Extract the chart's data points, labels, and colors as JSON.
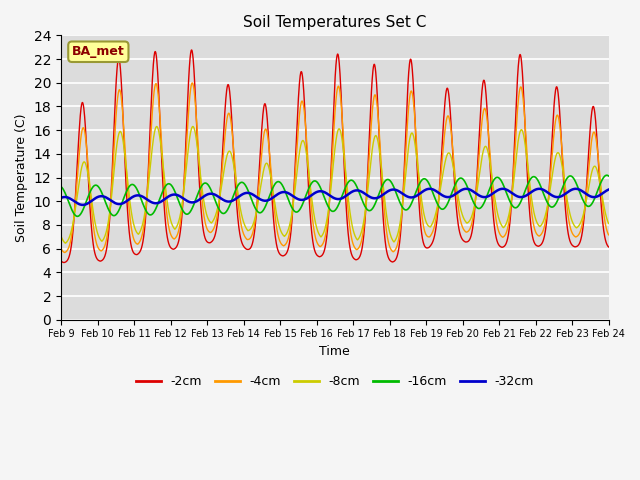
{
  "title": "Soil Temperatures Set C",
  "xlabel": "Time",
  "ylabel": "Soil Temperature (C)",
  "ylim": [
    0,
    24
  ],
  "yticks": [
    0,
    2,
    4,
    6,
    8,
    10,
    12,
    14,
    16,
    18,
    20,
    22,
    24
  ],
  "xtick_labels": [
    "Feb 9",
    "Feb 10",
    "Feb 11",
    "Feb 12",
    "Feb 13",
    "Feb 14",
    "Feb 15",
    "Feb 16",
    "Feb 17",
    "Feb 18",
    "Feb 19",
    "Feb 20",
    "Feb 21",
    "Feb 22",
    "Feb 23",
    "Feb 24"
  ],
  "legend_labels": [
    "-2cm",
    "-4cm",
    "-8cm",
    "-16cm",
    "-32cm"
  ],
  "line_colors": [
    "#dd0000",
    "#ff9900",
    "#cccc00",
    "#00bb00",
    "#0000cc"
  ],
  "line_widths": [
    1.0,
    1.0,
    1.0,
    1.2,
    1.8
  ],
  "annotation_text": "BA_met",
  "plot_bg_color": "#dcdcdc",
  "fig_bg_color": "#f5f5f5",
  "n_days": 15,
  "pts_per_day": 144
}
